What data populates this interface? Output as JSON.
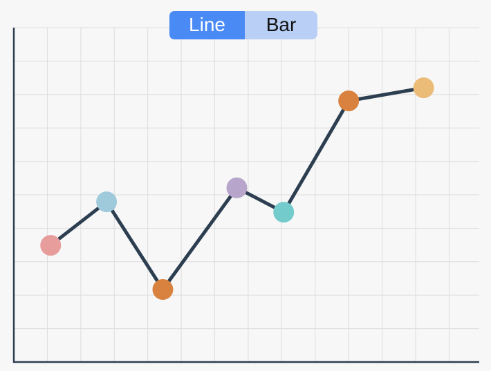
{
  "chart_data": {
    "type": "line",
    "toggle": {
      "options": [
        "Line",
        "Bar"
      ],
      "selected": 0
    },
    "x": [
      1.1,
      2.77,
      4.45,
      6.66,
      8.06,
      10.0,
      12.24
    ],
    "values": [
      3.49,
      4.79,
      2.17,
      5.21,
      4.48,
      7.81,
      8.2
    ],
    "colors": [
      "#e89d9d",
      "#9fcadc",
      "#d9823f",
      "#b8a5cb",
      "#74cbcb",
      "#d9823f",
      "#ebbb78"
    ],
    "line_color": "#2c3e50",
    "xlim": [
      0,
      13.9
    ],
    "ylim": [
      0,
      10
    ],
    "xticks": [
      1,
      2,
      3,
      4,
      5,
      6,
      7,
      8,
      9,
      10,
      11,
      12,
      13
    ],
    "yticks": [
      1,
      2,
      3,
      4,
      5,
      6,
      7,
      8,
      9,
      10
    ],
    "grid": true
  }
}
